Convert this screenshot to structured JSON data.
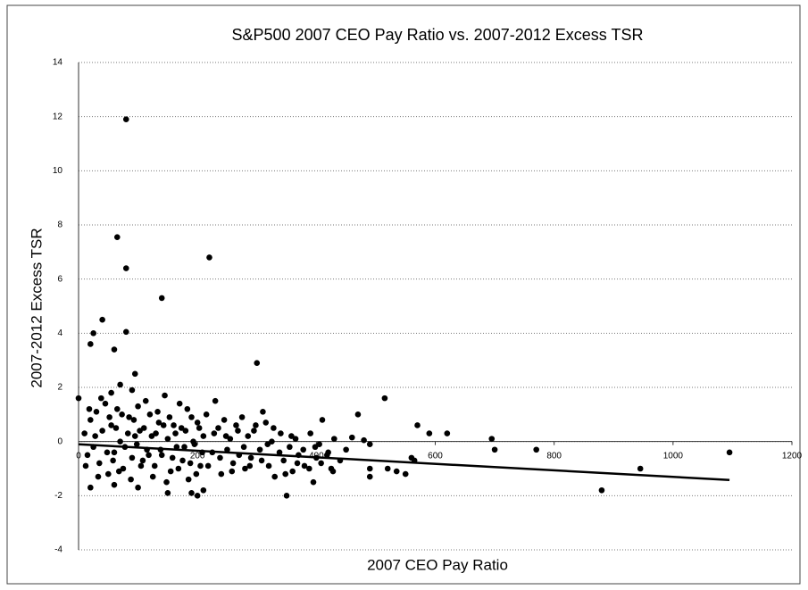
{
  "chart_data": {
    "type": "scatter",
    "title": "S&P500 2007 CEO Pay Ratio vs. 2007-2012 Excess TSR",
    "x_label": "2007 CEO Pay Ratio",
    "y_label": "2007-2012 Excess TSR",
    "color": "#000000",
    "xlim": [
      0,
      1200
    ],
    "ylim": [
      -4,
      14
    ],
    "xticks": [
      0,
      200,
      400,
      600,
      800,
      1000,
      1200
    ],
    "yticks": [
      -4,
      -2,
      0,
      2,
      4,
      6,
      8,
      10,
      12,
      14
    ],
    "grid": true,
    "x": [
      80,
      65,
      80,
      220,
      140,
      40,
      25,
      80,
      20,
      60,
      300,
      95,
      0,
      515,
      470,
      310,
      55,
      70,
      90,
      230,
      570,
      590,
      620,
      700,
      880,
      945,
      1095,
      770,
      695,
      460,
      480,
      490,
      520,
      535,
      550,
      490,
      490,
      560,
      565,
      350,
      190,
      200,
      210,
      150,
      20,
      60,
      100,
      10,
      15,
      20,
      25,
      30,
      35,
      40,
      45,
      50,
      55,
      60,
      65,
      70,
      75,
      85,
      90,
      95,
      100,
      105,
      110,
      115,
      120,
      125,
      130,
      135,
      140,
      145,
      150,
      155,
      160,
      165,
      170,
      175,
      180,
      185,
      190,
      195,
      200,
      205,
      210,
      215,
      225,
      235,
      240,
      245,
      250,
      255,
      260,
      265,
      270,
      275,
      280,
      285,
      290,
      295,
      305,
      315,
      320,
      325,
      330,
      340,
      345,
      355,
      360,
      365,
      370,
      380,
      390,
      395,
      400,
      405,
      410,
      420,
      425,
      430,
      440,
      450,
      12,
      18,
      28,
      33,
      38,
      48,
      52,
      58,
      63,
      68,
      73,
      78,
      83,
      88,
      93,
      98,
      103,
      108,
      113,
      118,
      123,
      128,
      133,
      138,
      143,
      148,
      153,
      158,
      163,
      168,
      173,
      178,
      183,
      188,
      193,
      198,
      203,
      208,
      218,
      228,
      238,
      248,
      258,
      268,
      278,
      288,
      298,
      308,
      318,
      328,
      338,
      348,
      358,
      368,
      378,
      388,
      398,
      408,
      418,
      428
    ],
    "values": [
      11.9,
      7.55,
      6.4,
      6.8,
      5.3,
      4.5,
      4.0,
      4.05,
      3.6,
      3.4,
      2.9,
      2.5,
      1.6,
      1.6,
      1.0,
      1.1,
      1.8,
      2.1,
      1.9,
      1.5,
      0.6,
      0.3,
      0.3,
      -0.3,
      -1.8,
      -1.0,
      -0.4,
      -0.3,
      0.1,
      0.15,
      0.05,
      -0.1,
      -1.0,
      -1.1,
      -1.2,
      -1.0,
      -1.3,
      -0.6,
      -0.7,
      -2.0,
      -1.9,
      -2.0,
      -1.8,
      -1.9,
      -1.7,
      -1.6,
      -1.7,
      0.3,
      -0.5,
      0.8,
      -0.2,
      1.1,
      -0.8,
      0.4,
      1.4,
      -1.2,
      0.6,
      -0.4,
      1.2,
      0.0,
      -1.0,
      0.9,
      -0.6,
      0.2,
      1.3,
      -0.9,
      0.5,
      -0.3,
      1.0,
      -1.3,
      0.3,
      0.7,
      -0.5,
      1.7,
      0.1,
      -1.1,
      0.6,
      -0.2,
      1.4,
      -0.7,
      0.4,
      -1.4,
      0.9,
      -0.1,
      0.7,
      -0.9,
      0.2,
      1.0,
      -0.4,
      0.5,
      -1.2,
      0.8,
      -0.3,
      0.1,
      -0.8,
      0.6,
      -0.5,
      0.9,
      -1.0,
      0.2,
      -0.6,
      0.4,
      -0.3,
      0.7,
      -0.9,
      0.0,
      -1.3,
      0.3,
      -0.7,
      -0.2,
      -1.1,
      0.1,
      -0.5,
      -0.9,
      0.3,
      -1.5,
      -0.6,
      -0.1,
      0.8,
      -0.4,
      -1.0,
      0.1,
      -0.7,
      -0.3,
      -0.9,
      1.2,
      0.2,
      -1.3,
      1.6,
      -0.4,
      0.9,
      -0.7,
      0.5,
      -1.1,
      1.0,
      -0.2,
      0.3,
      -1.4,
      0.8,
      -0.1,
      0.4,
      -0.7,
      1.5,
      -0.5,
      0.2,
      -0.9,
      1.1,
      -0.3,
      0.6,
      -1.5,
      0.9,
      -0.6,
      0.3,
      -1.0,
      0.5,
      -0.2,
      1.2,
      -0.8,
      0.0,
      -1.2,
      0.5,
      -0.4,
      -0.9,
      0.3,
      -0.6,
      0.2,
      -1.1,
      0.4,
      -0.2,
      -0.9,
      0.6,
      -0.7,
      -0.1,
      0.5,
      -0.4,
      -1.2,
      0.2,
      -0.8,
      -0.3,
      -1.0,
      -0.2,
      -0.8,
      -0.5,
      -1.1
    ],
    "trendline": {
      "x": [
        0,
        1095
      ],
      "y": [
        -0.1,
        -1.42
      ]
    }
  }
}
